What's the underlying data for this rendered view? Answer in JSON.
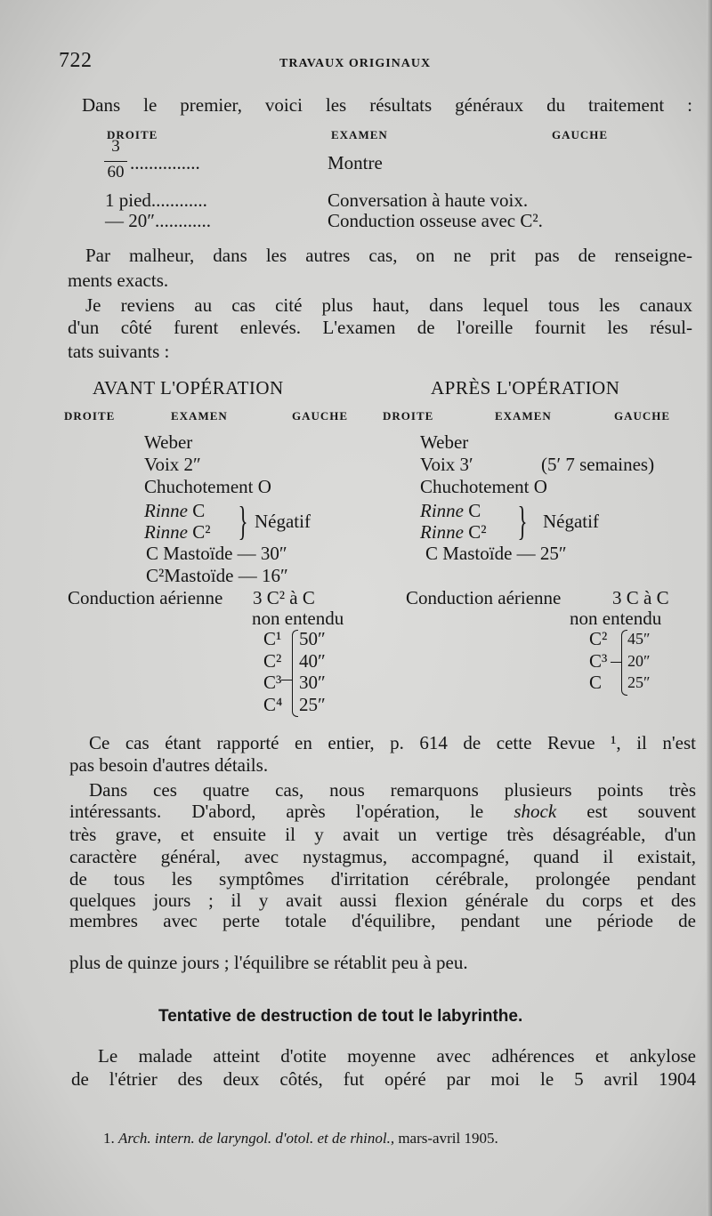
{
  "header": {
    "page_number": "722",
    "running_title": "TRAVAUX ORIGINAUX"
  },
  "intro": "Dans le premier, voici les résultats généraux du traitement :",
  "table1": {
    "headers": [
      "DROITE",
      "EXAMEN",
      "GAUCHE"
    ],
    "rows": [
      {
        "droite_num": "3",
        "droite_den": "60",
        "dots": "...............",
        "examen": "Montre"
      },
      {
        "droite": "1 pied............",
        "examen": "Conversation à haute voix."
      },
      {
        "droite": "— 20″............",
        "examen": "Conduction osseuse avec C²."
      }
    ]
  },
  "para1": [
    "Par malheur, dans les autres cas, on ne prit pas de renseigne-",
    "ments exacts."
  ],
  "para2": [
    "Je reviens au cas cité plus haut, dans lequel tous les canaux",
    "d'un côté furent enlevés. L'examen de l'oreille fournit les résul-",
    "tats suivants :"
  ],
  "table2": {
    "avant": {
      "title": "AVANT L'OPÉRATION",
      "headers": [
        "DROITE",
        "EXAMEN",
        "GAUCHE"
      ],
      "rows": [
        "Weber",
        "Voix 2″",
        "Chuchotement O"
      ],
      "rinne": [
        "Rinne",
        "C",
        "Rinne",
        "C²"
      ],
      "rinne_result": "Négatif",
      "mastoide": [
        "C Mastoïde — 30″",
        "C²Mastoïde — 16″"
      ],
      "conduction": "Conduction aérienne",
      "conduction_value": "3 C² à C",
      "non_entendu": "non entendu",
      "forks": [
        {
          "fork": "C¹",
          "time": "50″"
        },
        {
          "fork": "C²",
          "time": "40″"
        },
        {
          "fork": "C³",
          "time": "30″"
        },
        {
          "fork": "C⁴",
          "time": "25″"
        }
      ]
    },
    "apres": {
      "title": "APRÈS L'OPÉRATION",
      "headers": [
        "DROITE",
        "EXAMEN",
        "GAUCHE"
      ],
      "rows": [
        "Weber",
        "Voix 3′",
        "Chuchotement O"
      ],
      "voix_note": "(5′ 7 semaines)",
      "rinne": [
        "Rinne",
        "C",
        "Rinne",
        "C²"
      ],
      "rinne_result": "Négatif",
      "mastoide": [
        "C Mastoïde — 25″"
      ],
      "conduction": "Conduction aérienne",
      "conduction_value": "3 C à C",
      "non_entendu": "non entendu",
      "forks": [
        {
          "fork": "C²",
          "time": "45″"
        },
        {
          "fork": "C³",
          "time": "20″"
        },
        {
          "fork": "C",
          "time": "25″"
        }
      ]
    }
  },
  "para3": [
    "Ce cas étant rapporté en entier, p. 614 de cette Revue ¹, il n'est",
    "pas besoin d'autres détails."
  ],
  "para4": [
    "Dans ces quatre cas, nous remarquons plusieurs points très",
    [
      "intéressants. D'abord, après l'opération, le",
      "shock",
      "est souvent"
    ],
    "très grave, et ensuite il y avait un vertige très désagréable, d'un",
    "caractère général, avec nystagmus, accompagné, quand il existait,",
    "de tous les symptômes d'irritation cérébrale, prolongée pendant",
    "quelques jours ; il y avait aussi flexion générale du corps et des",
    "membres avec perte totale d'équilibre, pendant une période de",
    "plus de quinze jours ; l'équilibre se rétablit peu à peu."
  ],
  "section_heading": "Tentative de destruction de tout le labyrinthe.",
  "para5": [
    "Le malade atteint d'otite moyenne avec adhérences et ankylose",
    "de l'étrier des deux côtés, fut opéré par moi le 5 avril 1904"
  ],
  "footnote": {
    "number": "1.",
    "source": "Arch. intern. de laryngol. d'otol. et de rhinol.,",
    "date": "mars-avril 1905."
  }
}
